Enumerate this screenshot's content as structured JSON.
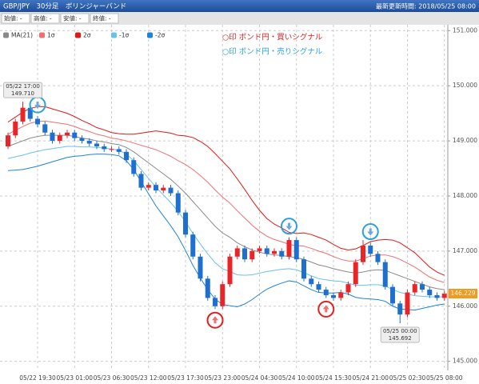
{
  "chart_data": {
    "type": "candlestick",
    "title": "GBP/JPY　30分足　ボリンジャーバンド",
    "updated": "最新更新時間: 2018/05/25 08:00",
    "info": [
      "始値: -",
      "高値: -",
      "安値: -",
      "終値: -"
    ],
    "categories": [
      null,
      null,
      null,
      null,
      "05/22 19:30",
      null,
      null,
      null,
      null,
      "05/23 01:00",
      null,
      null,
      null,
      null,
      "05/23 06:30",
      null,
      null,
      null,
      null,
      "05/23 12:00",
      null,
      null,
      null,
      null,
      "05/23 17:30",
      null,
      null,
      null,
      null,
      "05/23 23:00",
      null,
      null,
      null,
      null,
      "05/24 04:30",
      null,
      null,
      null,
      null,
      "05/24 10:00",
      null,
      null,
      null,
      null,
      "05/24 15:30",
      null,
      null,
      null,
      null,
      "05/24 21:00",
      null,
      null,
      null,
      null,
      "05/25 02:30",
      null,
      null,
      null,
      null,
      "05/25 08:00"
    ],
    "candles": {
      "up_color": "#e8262a",
      "down_color": "#1f6fd0",
      "open": [
        148.9,
        149.1,
        149.35,
        149.6,
        149.4,
        149.3,
        149.15,
        149.0,
        149.1,
        149.15,
        149.05,
        149.0,
        148.95,
        148.9,
        148.85,
        148.85,
        148.8,
        148.65,
        148.4,
        148.15,
        148.2,
        148.1,
        148.15,
        148.05,
        147.7,
        147.3,
        146.9,
        146.5,
        146.15,
        146.0,
        146.4,
        146.9,
        147.05,
        146.85,
        147.0,
        147.05,
        146.95,
        147.0,
        146.9,
        147.2,
        146.85,
        146.5,
        146.4,
        146.3,
        146.2,
        146.15,
        146.25,
        146.4,
        146.8,
        147.1,
        146.95,
        146.8,
        146.35,
        146.05,
        145.85,
        146.25,
        146.4,
        146.3,
        146.2,
        146.15
      ],
      "high": [
        149.15,
        149.4,
        149.71,
        149.65,
        149.45,
        149.35,
        149.2,
        149.15,
        149.2,
        149.2,
        149.1,
        149.05,
        149.0,
        148.95,
        148.9,
        148.9,
        148.85,
        148.7,
        148.45,
        148.25,
        148.25,
        148.2,
        148.2,
        148.1,
        147.75,
        147.35,
        146.95,
        146.55,
        146.2,
        146.45,
        146.95,
        147.1,
        147.1,
        147.05,
        147.1,
        147.1,
        147.05,
        147.05,
        147.25,
        147.25,
        146.9,
        146.55,
        146.45,
        146.35,
        146.25,
        146.3,
        146.45,
        146.85,
        147.2,
        147.15,
        147.0,
        146.85,
        146.4,
        146.1,
        146.3,
        146.45,
        146.45,
        146.35,
        146.25,
        146.28
      ],
      "low": [
        148.85,
        149.05,
        149.3,
        149.35,
        149.25,
        149.1,
        148.95,
        148.95,
        149.05,
        149.0,
        148.95,
        148.9,
        148.85,
        148.8,
        148.8,
        148.75,
        148.6,
        148.35,
        148.1,
        148.1,
        148.05,
        148.05,
        148.0,
        147.65,
        147.25,
        146.85,
        146.45,
        146.1,
        145.95,
        145.95,
        146.35,
        146.85,
        146.8,
        146.8,
        146.95,
        146.9,
        146.9,
        146.85,
        146.85,
        146.8,
        146.45,
        146.35,
        146.25,
        146.15,
        146.1,
        146.1,
        146.2,
        146.35,
        146.75,
        146.9,
        146.75,
        146.3,
        146.0,
        145.692,
        145.8,
        146.2,
        146.25,
        146.15,
        146.1,
        146.1
      ],
      "close": [
        149.1,
        149.35,
        149.6,
        149.4,
        149.3,
        149.15,
        149.0,
        149.1,
        149.15,
        149.05,
        149.0,
        148.95,
        148.9,
        148.85,
        148.85,
        148.8,
        148.65,
        148.4,
        148.15,
        148.2,
        148.1,
        148.15,
        148.05,
        147.7,
        147.3,
        146.9,
        146.5,
        146.15,
        146.0,
        146.4,
        146.9,
        147.05,
        146.85,
        147.0,
        147.05,
        146.95,
        147.0,
        146.9,
        147.2,
        146.85,
        146.5,
        146.4,
        146.3,
        146.2,
        146.15,
        146.25,
        146.4,
        146.8,
        147.1,
        146.95,
        146.8,
        146.35,
        146.05,
        145.85,
        146.25,
        146.4,
        146.3,
        146.2,
        146.15,
        146.229
      ]
    },
    "series": [
      {
        "name": "MA(21)",
        "color": "#8a8a8a",
        "values": [
          148.9,
          148.95,
          149.0,
          149.05,
          149.08,
          149.1,
          149.1,
          149.1,
          149.1,
          149.08,
          149.05,
          149.03,
          149.0,
          148.98,
          148.95,
          148.93,
          148.88,
          148.8,
          148.7,
          148.6,
          148.5,
          148.4,
          148.3,
          148.18,
          148.05,
          147.9,
          147.75,
          147.6,
          147.45,
          147.33,
          147.25,
          147.15,
          147.08,
          147.02,
          146.98,
          146.95,
          146.93,
          146.92,
          146.9,
          146.88,
          146.85,
          146.8,
          146.75,
          146.72,
          146.68,
          146.65,
          146.62,
          146.6,
          146.62,
          146.65,
          146.66,
          146.65,
          146.6,
          146.55,
          146.5,
          146.45,
          146.4,
          146.35,
          146.32,
          146.3
        ]
      },
      {
        "name": "1σ",
        "color": "#f07070",
        "values": [
          149.12,
          149.19,
          149.26,
          149.32,
          149.35,
          149.36,
          149.34,
          149.32,
          149.3,
          149.26,
          149.21,
          149.17,
          149.12,
          149.09,
          149.05,
          149.03,
          149.0,
          148.96,
          148.92,
          148.88,
          148.84,
          148.78,
          148.72,
          148.64,
          148.57,
          148.48,
          148.37,
          148.25,
          148.11,
          147.98,
          147.87,
          147.73,
          147.6,
          147.47,
          147.36,
          147.27,
          147.21,
          147.17,
          147.12,
          147.1,
          147.09,
          147.05,
          147.0,
          146.96,
          146.9,
          146.85,
          146.82,
          146.82,
          146.86,
          146.91,
          146.93,
          146.93,
          146.9,
          146.85,
          146.78,
          146.71,
          146.62,
          146.53,
          146.47,
          146.43
        ]
      },
      {
        "name": "2σ",
        "color": "#e01818",
        "values": [
          149.34,
          149.43,
          149.52,
          149.59,
          149.62,
          149.62,
          149.58,
          149.54,
          149.5,
          149.44,
          149.37,
          149.31,
          149.24,
          149.2,
          149.15,
          149.13,
          149.12,
          149.12,
          149.14,
          149.16,
          149.18,
          149.16,
          149.14,
          149.1,
          149.09,
          149.06,
          148.99,
          148.9,
          148.77,
          148.63,
          148.49,
          148.31,
          148.12,
          147.92,
          147.74,
          147.59,
          147.49,
          147.42,
          147.34,
          147.32,
          147.33,
          147.3,
          147.25,
          147.2,
          147.12,
          147.05,
          147.02,
          147.04,
          147.1,
          147.17,
          147.2,
          147.21,
          147.2,
          147.15,
          147.06,
          146.97,
          146.84,
          146.71,
          146.62,
          146.56
        ]
      },
      {
        "name": "-1σ",
        "color": "#6cc0ef",
        "values": [
          148.68,
          148.71,
          148.74,
          148.78,
          148.81,
          148.84,
          148.86,
          148.88,
          148.9,
          148.9,
          148.89,
          148.89,
          148.88,
          148.87,
          148.85,
          148.83,
          148.76,
          148.64,
          148.48,
          148.32,
          148.16,
          148.02,
          147.88,
          147.72,
          147.53,
          147.32,
          147.13,
          146.95,
          146.79,
          146.68,
          146.63,
          146.57,
          146.56,
          146.57,
          146.6,
          146.63,
          146.65,
          146.67,
          146.68,
          146.66,
          146.61,
          146.55,
          146.5,
          146.48,
          146.46,
          146.45,
          146.42,
          146.38,
          146.38,
          146.39,
          146.39,
          146.37,
          146.3,
          146.25,
          146.22,
          146.19,
          146.18,
          146.17,
          146.17,
          146.17
        ]
      },
      {
        "name": "-2σ",
        "color": "#1f84d6",
        "values": [
          148.46,
          148.47,
          148.48,
          148.51,
          148.54,
          148.58,
          148.62,
          148.66,
          148.7,
          148.72,
          148.73,
          148.75,
          148.76,
          148.76,
          148.75,
          148.73,
          148.64,
          148.48,
          148.26,
          148.04,
          147.82,
          147.64,
          147.46,
          147.26,
          147.01,
          146.74,
          146.51,
          146.3,
          146.13,
          146.03,
          146.01,
          145.99,
          146.04,
          146.12,
          146.22,
          146.31,
          146.37,
          146.42,
          146.46,
          146.44,
          146.37,
          146.3,
          146.25,
          146.24,
          146.24,
          146.25,
          146.22,
          146.16,
          146.14,
          146.13,
          146.12,
          146.09,
          146.0,
          145.95,
          145.94,
          145.93,
          145.96,
          145.99,
          146.02,
          146.04
        ]
      }
    ],
    "signal_notes": [
      {
        "text": "○印 ポンド円・買いシグナル",
        "color": "#e02020"
      },
      {
        "text": "○印 ポンド円・売りシグナル",
        "color": "#2aa0e0"
      }
    ],
    "buy_signals": [
      28,
      43
    ],
    "sell_signals": [
      4,
      38,
      49
    ],
    "high_note": {
      "time": "05/22 17:00",
      "value": 149.71,
      "label": "149.710"
    },
    "low_note": {
      "time": "05/25 00:00",
      "value": 145.692
    },
    "last_color": "#f39a1e",
    "ylim": [
      144.85,
      151.12
    ],
    "yticks": [
      {
        "value": 145,
        "label": "145.000"
      },
      {
        "value": 146,
        "label": "146.000"
      },
      {
        "value": 147,
        "label": "147.000"
      },
      {
        "value": 148,
        "label": "148.000"
      },
      {
        "value": 149,
        "label": "149.000"
      },
      {
        "value": 150,
        "label": "150.000"
      },
      {
        "value": 151,
        "label": "151.000"
      }
    ],
    "grid": true
  }
}
